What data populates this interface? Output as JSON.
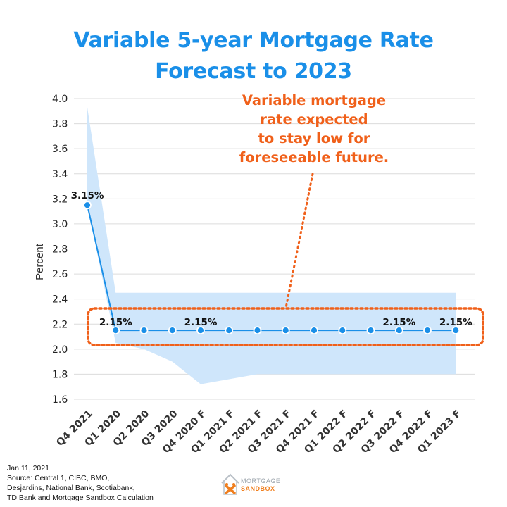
{
  "title_line1": "Variable 5-year Mortgage Rate",
  "title_line2": "Forecast to 2023",
  "annotation": {
    "lines": [
      "Variable mortgage",
      "rate expected",
      "to stay low for",
      "foreseeable future."
    ],
    "color": "#f0601a"
  },
  "footer": {
    "lines": [
      "Jan 11, 2021",
      "Source: Central 1, CIBC, BMO,",
      "Desjardins, National Bank, Scotiabank,",
      "TD Bank and Mortgage Sandbox Calculation"
    ]
  },
  "logo": {
    "line1": "MORTGAGE",
    "line2": "SANDBOX"
  },
  "colors": {
    "title": "#1a8fe8",
    "line": "#1a8fe8",
    "band": "#cfe6fb",
    "grid": "#dcdcdc",
    "annotation": "#f0601a"
  },
  "chart_data": {
    "type": "line",
    "ylabel": "Percent",
    "xlabel": "",
    "ylim": [
      1.6,
      4.0
    ],
    "yticks": [
      "1.6",
      "1.8",
      "2.0",
      "2.2",
      "2.4",
      "2.6",
      "2.8",
      "3.0",
      "3.2",
      "3.4",
      "3.6",
      "3.8",
      "4.0"
    ],
    "categories": [
      "Q4 2021",
      "Q1 2020",
      "Q2 2020",
      "Q3 2020",
      "Q4 2020 F",
      "Q1 2021 F",
      "Q2 2021 F",
      "Q3 2021 F",
      "Q4 2021 F",
      "Q1 2022 F",
      "Q2 2022 F",
      "Q3 2022 F",
      "Q4 2022 F",
      "Q1 2023 F"
    ],
    "values": [
      3.15,
      2.15,
      2.15,
      2.15,
      2.15,
      2.15,
      2.15,
      2.15,
      2.15,
      2.15,
      2.15,
      2.15,
      2.15,
      2.15
    ],
    "band_high": [
      3.93,
      2.45,
      2.45,
      2.45,
      2.45,
      2.45,
      2.45,
      2.45,
      2.45,
      2.45,
      2.45,
      2.45,
      2.45,
      2.45
    ],
    "band_low": [
      3.15,
      2.05,
      2.0,
      1.9,
      1.72,
      1.76,
      1.8,
      1.8,
      1.8,
      1.8,
      1.8,
      1.8,
      1.8,
      1.8
    ],
    "data_labels": [
      {
        "index": 0,
        "text": "3.15%"
      },
      {
        "index": 1,
        "text": "2.15%"
      },
      {
        "index": 4,
        "text": "2.15%"
      },
      {
        "index": 11,
        "text": "2.15%"
      },
      {
        "index": 13,
        "text": "2.15%"
      }
    ],
    "grid": true,
    "legend": "none"
  }
}
